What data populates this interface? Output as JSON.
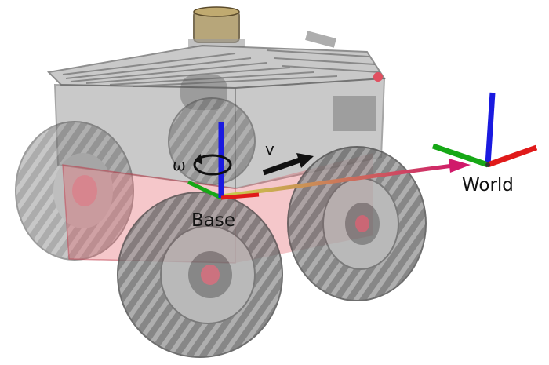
{
  "labels": {
    "base": "Base",
    "world": "World",
    "angular_velocity": "ω",
    "linear_velocity": "v"
  },
  "icons": [
    "robot-rover",
    "world-frame-axes",
    "base-frame-axes",
    "rotation-arrow",
    "velocity-arrow",
    "transform-link"
  ],
  "colors": {
    "x_axis": "#e01a1a",
    "y_axis": "#16a816",
    "z_axis": "#1a1ae0",
    "base_highlight": "#e0505a",
    "transform_link_start": "#c8d24a",
    "transform_link_end": "#d01a6a",
    "robot_chassis": "#8a8a8a",
    "wheels": "#5a5a5a"
  }
}
